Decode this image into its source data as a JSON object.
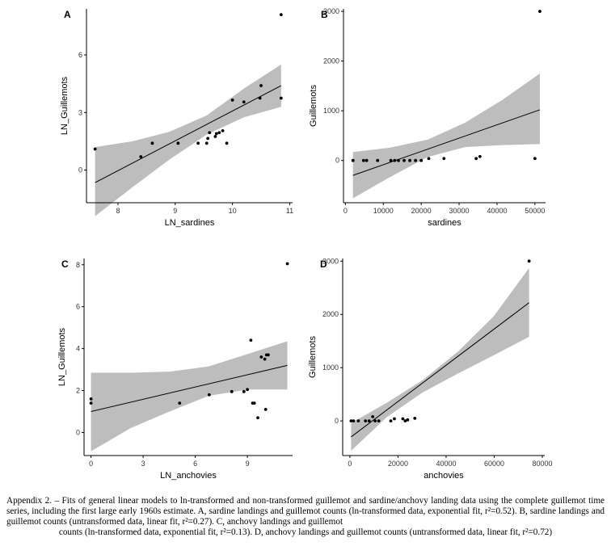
{
  "caption": {
    "lines": [
      "Appendix 2. – Fits of general linear models to ln-transformed and non-transformed guillemot and sardine/anchovy landing data using the complete guillemot time series, including the first large early 1960s estimate. A, sardine landings and guillemot counts (ln-transformed data,",
      "exponential fit, r²=0.52). B, sardine landings and guillemot counts (untransformed data, linear fit, r²=0.27). C, anchovy landings and guillemot",
      "counts (ln-transformed data, exponential fit, r²=0.13). D, anchovy landings and guillemot counts (untransformed data, linear fit, r²=0.72)"
    ]
  },
  "colors": {
    "band": "#bdbdbd",
    "line": "#000000",
    "point": "#000000",
    "axis": "#000000"
  },
  "chart_data": [
    {
      "panel": "A",
      "type": "scatter",
      "xlabel": "LN_sardines",
      "ylabel": "LN_Guillemots",
      "xlim": [
        7.45,
        11.05
      ],
      "ylim": [
        -1.7,
        8.4
      ],
      "xticks": [
        8,
        9,
        10,
        11
      ],
      "yticks": [
        0,
        3,
        6
      ],
      "points": [
        [
          7.6,
          1.1
        ],
        [
          8.4,
          0.7
        ],
        [
          8.6,
          1.4
        ],
        [
          9.05,
          1.4
        ],
        [
          9.4,
          1.4
        ],
        [
          9.55,
          1.4
        ],
        [
          9.57,
          1.65
        ],
        [
          9.6,
          1.95
        ],
        [
          9.7,
          1.75
        ],
        [
          9.72,
          1.9
        ],
        [
          9.77,
          1.95
        ],
        [
          9.83,
          2.05
        ],
        [
          9.9,
          1.4
        ],
        [
          10.0,
          3.65
        ],
        [
          10.2,
          3.55
        ],
        [
          10.48,
          3.75
        ],
        [
          10.5,
          4.4
        ],
        [
          10.85,
          3.75
        ],
        [
          10.85,
          8.1
        ]
      ],
      "fit": {
        "x": [
          7.6,
          10.85
        ],
        "y": [
          -0.65,
          4.4
        ]
      },
      "band": {
        "x": [
          7.6,
          8.25,
          8.9,
          9.55,
          10.2,
          10.85
        ],
        "lower": [
          -2.4,
          -0.9,
          0.55,
          1.85,
          2.75,
          3.3
        ],
        "upper": [
          1.2,
          1.5,
          2.0,
          2.85,
          4.25,
          5.5
        ]
      },
      "grid": false
    },
    {
      "panel": "B",
      "type": "scatter",
      "xlabel": "sardines",
      "ylabel": "Guillemots",
      "xlim": [
        -500,
        52800
      ],
      "ylim": [
        -850,
        3050
      ],
      "xticks": [
        0,
        10000,
        20000,
        30000,
        40000,
        50000
      ],
      "yticks": [
        0,
        1000,
        2000,
        3000
      ],
      "points": [
        [
          2000,
          0
        ],
        [
          4800,
          0
        ],
        [
          5600,
          0
        ],
        [
          8500,
          0
        ],
        [
          12000,
          0
        ],
        [
          13000,
          0
        ],
        [
          14000,
          0
        ],
        [
          15500,
          0
        ],
        [
          17000,
          0
        ],
        [
          18500,
          0
        ],
        [
          20000,
          0
        ],
        [
          22000,
          40
        ],
        [
          26000,
          40
        ],
        [
          34500,
          40
        ],
        [
          35500,
          80
        ],
        [
          50000,
          40
        ],
        [
          51300,
          3000
        ]
      ],
      "fit": {
        "x": [
          2000,
          51300
        ],
        "y": [
          -300,
          1020
        ]
      },
      "band": {
        "x": [
          2000,
          11860,
          21720,
          31580,
          41440,
          51300
        ],
        "lower": [
          -760,
          -330,
          70,
          270,
          310,
          330
        ],
        "upper": [
          170,
          260,
          420,
          760,
          1220,
          1750
        ]
      },
      "grid": false
    },
    {
      "panel": "C",
      "type": "scatter",
      "xlabel": "LN_anchovies",
      "ylabel": "LN_Guillemots",
      "xlim": [
        -0.4,
        11.6
      ],
      "ylim": [
        -1.1,
        8.3
      ],
      "xticks": [
        0,
        3,
        6,
        9
      ],
      "yticks": [
        0,
        2,
        4,
        6,
        8
      ],
      "points": [
        [
          0,
          1.6
        ],
        [
          0,
          1.4
        ],
        [
          5.1,
          1.4
        ],
        [
          6.8,
          1.8
        ],
        [
          8.1,
          1.95
        ],
        [
          8.8,
          1.95
        ],
        [
          9.0,
          2.05
        ],
        [
          9.2,
          4.4
        ],
        [
          9.3,
          1.4
        ],
        [
          9.4,
          1.4
        ],
        [
          9.6,
          0.7
        ],
        [
          9.8,
          3.6
        ],
        [
          10.0,
          3.5
        ],
        [
          10.05,
          1.1
        ],
        [
          10.1,
          3.7
        ],
        [
          10.2,
          3.7
        ],
        [
          11.3,
          8.05
        ]
      ],
      "fit": {
        "x": [
          0,
          11.3
        ],
        "y": [
          1.0,
          3.2
        ]
      },
      "band": {
        "x": [
          0,
          2.26,
          4.52,
          6.78,
          9.04,
          11.3
        ],
        "lower": [
          -0.9,
          0.2,
          1.0,
          1.75,
          2.05,
          2.05
        ],
        "upper": [
          2.85,
          2.85,
          2.9,
          3.15,
          3.75,
          4.35
        ]
      },
      "grid": false
    },
    {
      "panel": "D",
      "type": "scatter",
      "xlabel": "anchovies",
      "ylabel": "Guillemots",
      "xlim": [
        -3000,
        81000
      ],
      "ylim": [
        -650,
        3050
      ],
      "xticks": [
        0,
        20000,
        40000,
        60000,
        80000
      ],
      "yticks": [
        0,
        1000,
        2000,
        3000
      ],
      "points": [
        [
          500,
          0
        ],
        [
          1500,
          0
        ],
        [
          3500,
          0
        ],
        [
          6500,
          0
        ],
        [
          8000,
          0
        ],
        [
          9500,
          80
        ],
        [
          10500,
          0
        ],
        [
          12000,
          0
        ],
        [
          17000,
          0
        ],
        [
          18500,
          40
        ],
        [
          22000,
          40
        ],
        [
          23000,
          0
        ],
        [
          24000,
          20
        ],
        [
          27000,
          50
        ],
        [
          74500,
          3000
        ]
      ],
      "fit": {
        "x": [
          500,
          74500
        ],
        "y": [
          -300,
          2220
        ]
      },
      "band": {
        "x": [
          500,
          15300,
          30100,
          44900,
          59700,
          74500
        ],
        "lower": [
          -560,
          70,
          530,
          890,
          1230,
          1580
        ],
        "upper": [
          -40,
          340,
          760,
          1300,
          1960,
          2870
        ]
      },
      "grid": false
    }
  ]
}
